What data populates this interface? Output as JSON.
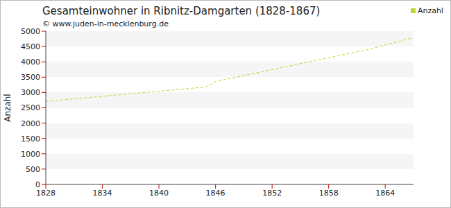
{
  "chart_data": {
    "type": "line",
    "title": "Gesamteinwohner in Ribnitz-Damgarten (1828-1867)",
    "subtitle": "© www.juden-in-mecklenburg.de",
    "y_label": "Anzahl",
    "x": [
      1828,
      1845,
      1846,
      1862,
      1867
    ],
    "series": [
      {
        "name": "Anzahl",
        "color": "#b5d930",
        "values": [
          2710,
          3180,
          3360,
          4390,
          4790
        ],
        "line_style": "dashed"
      }
    ],
    "xlim": [
      1828,
      1867
    ],
    "xticks": [
      1828,
      1834,
      1840,
      1846,
      1852,
      1858,
      1864
    ],
    "ylim": [
      0,
      5000
    ],
    "yticks": [
      0,
      500,
      1000,
      1500,
      2000,
      2500,
      3000,
      3500,
      4000,
      4500,
      5000
    ],
    "grid": true,
    "legend": "upper right"
  }
}
